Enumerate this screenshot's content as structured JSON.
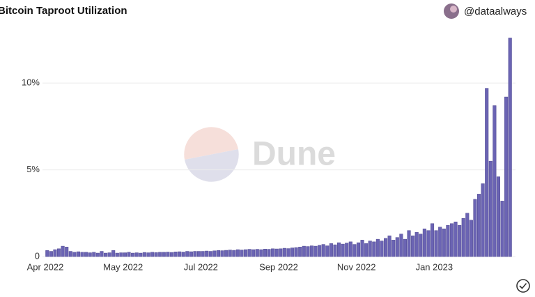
{
  "chart_data": {
    "type": "bar",
    "title": "Bitcoin Taproot Utilization",
    "author": "@dataalways",
    "color": "#6b64b3",
    "categories": [
      "Apr 2022",
      null,
      null,
      null,
      null,
      null,
      null,
      null,
      null,
      null,
      null,
      null,
      null,
      null,
      null,
      null,
      null,
      null,
      null,
      null,
      "May 2022",
      null,
      null,
      null,
      null,
      null,
      null,
      null,
      null,
      null,
      null,
      null,
      null,
      null,
      null,
      null,
      null,
      null,
      null,
      null,
      "Jul 2022",
      null,
      null,
      null,
      null,
      null,
      null,
      null,
      null,
      null,
      null,
      null,
      null,
      null,
      null,
      null,
      null,
      null,
      null,
      null,
      "Sep 2022",
      null,
      null,
      null,
      null,
      null,
      null,
      null,
      null,
      null,
      null,
      null,
      null,
      null,
      null,
      null,
      null,
      null,
      null,
      null,
      "Nov 2022",
      null,
      null,
      null,
      null,
      null,
      null,
      null,
      null,
      null,
      null,
      null,
      null,
      null,
      null,
      null,
      null,
      null,
      null,
      null,
      "Jan 2023",
      null,
      null,
      null,
      null,
      null,
      null,
      null,
      null,
      null,
      null,
      null,
      null,
      null,
      null,
      null,
      null,
      null,
      null,
      null
    ],
    "values": [
      0.35,
      0.3,
      0.4,
      0.45,
      0.6,
      0.55,
      0.3,
      0.25,
      0.28,
      0.25,
      0.25,
      0.22,
      0.25,
      0.2,
      0.3,
      0.2,
      0.22,
      0.35,
      0.2,
      0.22,
      0.22,
      0.25,
      0.2,
      0.22,
      0.2,
      0.24,
      0.22,
      0.25,
      0.23,
      0.25,
      0.25,
      0.26,
      0.24,
      0.27,
      0.28,
      0.26,
      0.3,
      0.28,
      0.3,
      0.3,
      0.3,
      0.32,
      0.3,
      0.33,
      0.35,
      0.34,
      0.36,
      0.38,
      0.36,
      0.4,
      0.38,
      0.4,
      0.42,
      0.4,
      0.42,
      0.4,
      0.43,
      0.42,
      0.45,
      0.44,
      0.45,
      0.48,
      0.46,
      0.5,
      0.52,
      0.55,
      0.6,
      0.58,
      0.62,
      0.6,
      0.65,
      0.7,
      0.62,
      0.75,
      0.68,
      0.8,
      0.72,
      0.78,
      0.85,
      0.7,
      0.8,
      0.95,
      0.75,
      0.9,
      0.85,
      1.0,
      0.9,
      1.05,
      1.2,
      0.95,
      1.1,
      1.3,
      1.0,
      1.5,
      1.2,
      1.4,
      1.3,
      1.6,
      1.5,
      1.9,
      1.5,
      1.7,
      1.6,
      1.8,
      1.9,
      2.0,
      1.8,
      2.2,
      2.5,
      2.1,
      3.3,
      3.6,
      4.2,
      9.7,
      5.5,
      8.7,
      4.6,
      3.2,
      9.2,
      12.6
    ],
    "ylim": [
      0,
      13
    ],
    "yticks": [
      0,
      {
        "value": 5,
        "label": "5%"
      },
      {
        "value": 10,
        "label": "10%"
      }
    ],
    "grid": true
  }
}
